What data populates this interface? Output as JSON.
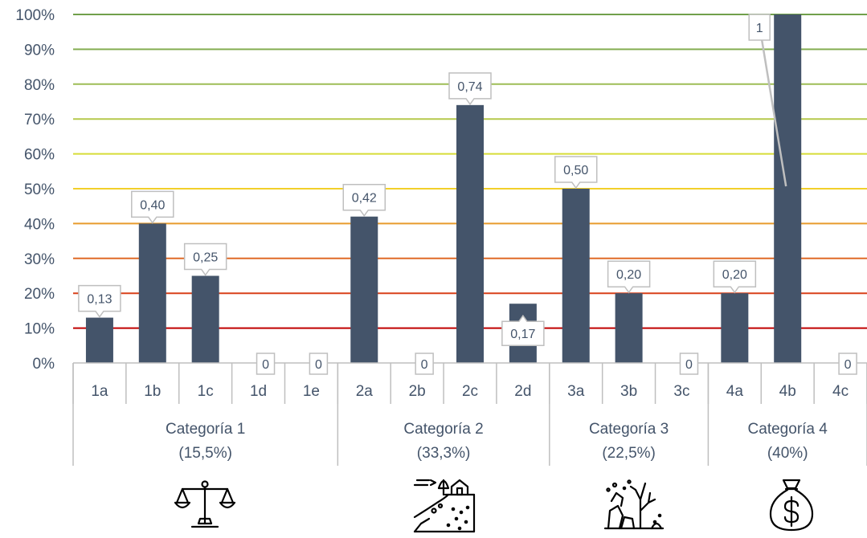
{
  "chart_data": {
    "type": "bar",
    "ylim": [
      0,
      1
    ],
    "y_ticks": [
      "0%",
      "10%",
      "20%",
      "30%",
      "40%",
      "50%",
      "60%",
      "70%",
      "80%",
      "90%",
      "100%"
    ],
    "categories": [
      "1a",
      "1b",
      "1c",
      "1d",
      "1e",
      "2a",
      "2b",
      "2c",
      "2d",
      "3a",
      "3b",
      "3c",
      "4a",
      "4b",
      "4c"
    ],
    "values": [
      0.13,
      0.4,
      0.25,
      0,
      0,
      0.42,
      0,
      0.74,
      0.17,
      0.5,
      0.2,
      0,
      0.2,
      1,
      0
    ],
    "data_labels": [
      "0,13",
      "0,40",
      "0,25",
      "0",
      "0",
      "0,42",
      "0",
      "0,74",
      "0,17",
      "0,50",
      "0,20",
      "0",
      "0,20",
      "1",
      "0"
    ],
    "groups": [
      {
        "name": "Categoría 1",
        "weight": "(15,5%)",
        "count": 5,
        "icon": "scales-of-justice-icon"
      },
      {
        "name": "Categoría 2",
        "weight": "(33,3%)",
        "count": 4,
        "icon": "landslide-erosion-icon"
      },
      {
        "name": "Categoría 3",
        "weight": "(22,5%)",
        "count": 3,
        "icon": "coral-reef-ecosystem-icon"
      },
      {
        "name": "Categoría 4",
        "weight": "(40%)",
        "count": 3,
        "icon": "money-bag-icon"
      }
    ],
    "gridline_colors": [
      "#c00000",
      "#d9401a",
      "#e06a27",
      "#e89b2c",
      "#f2cf2a",
      "#d6dc38",
      "#b5c94c",
      "#9dbd55",
      "#84ad52",
      "#70a04a"
    ],
    "bar_color": "#44546a",
    "label_border_color": "#bfbfbf",
    "grid": true,
    "legend": "none"
  }
}
